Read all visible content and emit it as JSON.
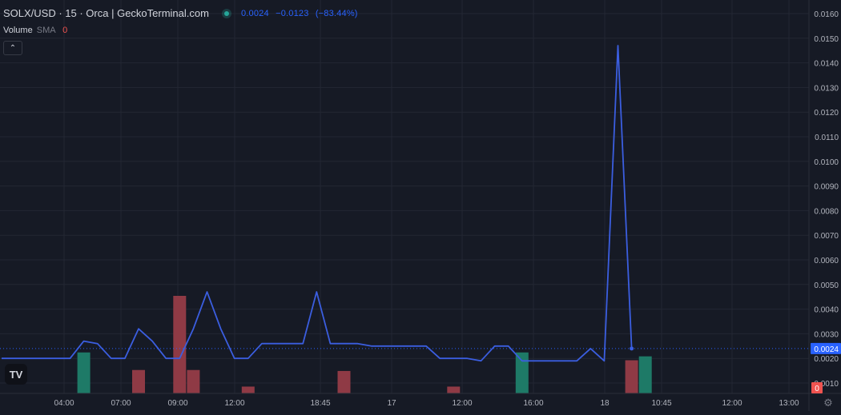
{
  "header": {
    "symbol_line": "SOLX/USD · 15 · Orca | GeckoTerminal.com",
    "price": "0.0024",
    "change": "−0.0123",
    "change_pct": "(−83.44%)"
  },
  "volume_indicator": {
    "label": "Volume",
    "sma_label": "SMA",
    "value": "0"
  },
  "colors": {
    "background": "#161a25",
    "line": "#3b5ee0",
    "up_volume": "#1e7a67",
    "down_volume": "#8f3a45",
    "grid": "#232733",
    "text": "#d1d4dc",
    "accent": "#2962ff"
  },
  "icons": {
    "collapse": "chevron-up-icon",
    "logo": "tradingview-logo",
    "settings": "gear-icon"
  },
  "logo_text": "TV",
  "chart_data": {
    "type": "line",
    "y_axis": {
      "ticks": [
        "0.0160",
        "0.0150",
        "0.0140",
        "0.0130",
        "0.0120",
        "0.0110",
        "0.0100",
        "0.0090",
        "0.0080",
        "0.0070",
        "0.0060",
        "0.0050",
        "0.0040",
        "0.0030",
        "0.0020",
        "0.0010"
      ],
      "ylim": [
        0.0008,
        0.0163
      ],
      "position": "right",
      "current_price_label": "0.0024",
      "current_price": 0.0024,
      "volume_label": "0"
    },
    "x_axis": {
      "ticks": [
        "04:00",
        "07:00",
        "09:00",
        "12:00",
        "18:45",
        "17",
        "12:00",
        "16:00",
        "18",
        "10:45",
        "12:00",
        "13:00"
      ]
    },
    "grid": true,
    "series": [
      {
        "values": [
          0.002,
          0.002,
          0.002,
          0.002,
          0.002,
          0.002,
          0.0027,
          0.0026,
          0.002,
          0.002,
          0.0032,
          0.0027,
          0.002,
          0.002,
          0.0032,
          0.0047,
          0.0032,
          0.002,
          0.002,
          0.0026,
          0.0026,
          0.0026,
          0.0026,
          0.0047,
          0.0026,
          0.0026,
          0.0026,
          0.0025,
          0.0025,
          0.0025,
          0.0025,
          0.0025,
          0.002,
          0.002,
          0.002,
          0.0019,
          0.0025,
          0.0025,
          0.0019,
          0.0019,
          0.0019,
          0.0019,
          0.0019,
          0.0024,
          0.0019,
          0.0147,
          0.0024
        ]
      }
    ],
    "volume": {
      "bars": [
        {
          "index": 6,
          "direction": "up",
          "level": 0.42
        },
        {
          "index": 10,
          "direction": "down",
          "level": 0.24
        },
        {
          "index": 13,
          "direction": "down",
          "level": 1.0
        },
        {
          "index": 14,
          "direction": "down",
          "level": 0.24
        },
        {
          "index": 18,
          "direction": "down",
          "level": 0.07
        },
        {
          "index": 25,
          "direction": "down",
          "level": 0.23
        },
        {
          "index": 33,
          "direction": "down",
          "level": 0.07
        },
        {
          "index": 38,
          "direction": "up",
          "level": 0.42
        },
        {
          "index": 46,
          "direction": "down",
          "level": 0.34
        },
        {
          "index": 47,
          "direction": "up",
          "level": 0.38
        }
      ]
    }
  }
}
